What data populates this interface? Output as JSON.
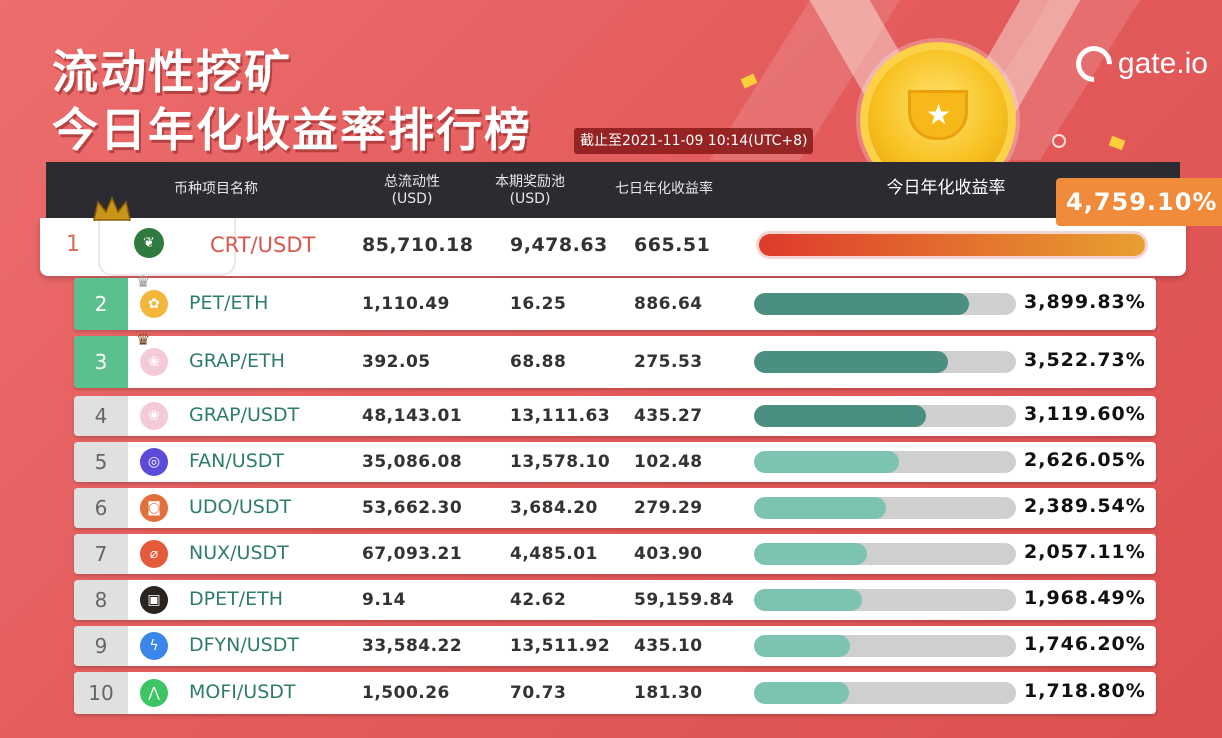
{
  "title_line1": "流动性挖矿",
  "title_line2": "今日年化收益率排行榜",
  "timestamp": "截止至2021-11-09 10:14(UTC+8)",
  "logo": "gate.io",
  "colors": {
    "header_bg": "#2b2b31",
    "bar_green_dark": "#4a8f82",
    "bar_green_light": "#7cc4b1",
    "bar_track": "#cfcfcf",
    "top_badge": "#ef8b3a",
    "rank_green": "#5bbf8e"
  },
  "headers": {
    "name": "币种项目名称",
    "liquidity": "总流动性\n(USD)",
    "pool": "本期奖励池\n(USD)",
    "apr7": "七日年化收益率",
    "apr_today": "今日年化收益率"
  },
  "rows": [
    {
      "rank": "1",
      "pair": "CRT/USDT",
      "liquidity": "85,710.18",
      "pool": "9,478.63",
      "apr7": "665.51",
      "apr": "4,759.10%",
      "value": 4759.1,
      "icon": "leaf-icon"
    },
    {
      "rank": "2",
      "pair": "PET/ETH",
      "liquidity": "1,110.49",
      "pool": "16.25",
      "apr7": "886.64",
      "apr": "3,899.83%",
      "value": 3899.83,
      "icon": "pet-icon"
    },
    {
      "rank": "3",
      "pair": "GRAP/ETH",
      "liquidity": "392.05",
      "pool": "68.88",
      "apr7": "275.53",
      "apr": "3,522.73%",
      "value": 3522.73,
      "icon": "grape-icon"
    },
    {
      "rank": "4",
      "pair": "GRAP/USDT",
      "liquidity": "48,143.01",
      "pool": "13,111.63",
      "apr7": "435.27",
      "apr": "3,119.60%",
      "value": 3119.6,
      "icon": "grape-icon"
    },
    {
      "rank": "5",
      "pair": "FAN/USDT",
      "liquidity": "35,086.08",
      "pool": "13,578.10",
      "apr7": "102.48",
      "apr": "2,626.05%",
      "value": 2626.05,
      "icon": "fan-icon"
    },
    {
      "rank": "6",
      "pair": "UDO/USDT",
      "liquidity": "53,662.30",
      "pool": "3,684.20",
      "apr7": "279.29",
      "apr": "2,389.54%",
      "value": 2389.54,
      "icon": "udo-icon"
    },
    {
      "rank": "7",
      "pair": "NUX/USDT",
      "liquidity": "67,093.21",
      "pool": "4,485.01",
      "apr7": "403.90",
      "apr": "2,057.11%",
      "value": 2057.11,
      "icon": "nux-icon"
    },
    {
      "rank": "8",
      "pair": "DPET/ETH",
      "liquidity": "9.14",
      "pool": "42.62",
      "apr7": "59,159.84",
      "apr": "1,968.49%",
      "value": 1968.49,
      "icon": "dpet-icon"
    },
    {
      "rank": "9",
      "pair": "DFYN/USDT",
      "liquidity": "33,584.22",
      "pool": "13,511.92",
      "apr7": "435.10",
      "apr": "1,746.20%",
      "value": 1746.2,
      "icon": "dfyn-icon"
    },
    {
      "rank": "10",
      "pair": "MOFI/USDT",
      "liquidity": "1,500.26",
      "pool": "70.73",
      "apr7": "181.30",
      "apr": "1,718.80%",
      "value": 1718.8,
      "icon": "mofi-icon"
    }
  ]
}
